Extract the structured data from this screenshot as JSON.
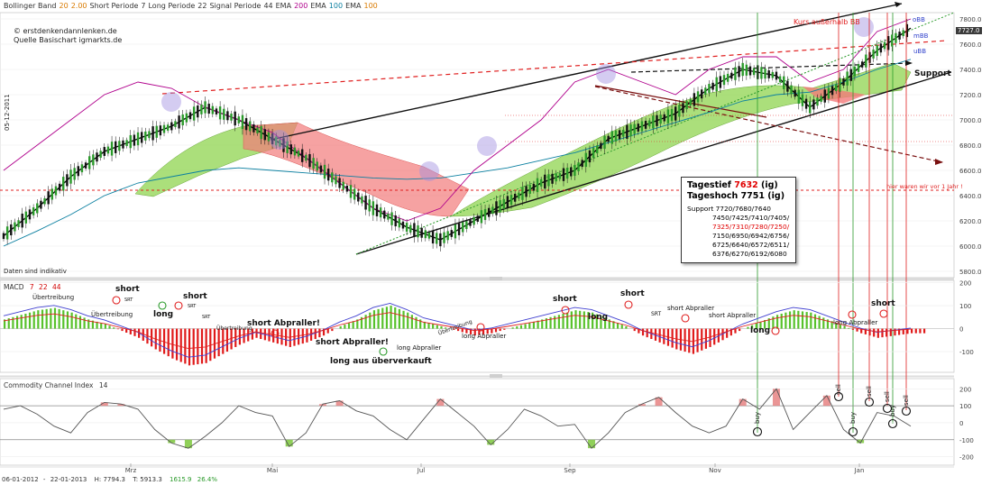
{
  "header": {
    "indicators": [
      {
        "label": "Bollinger Band",
        "color": "#333333"
      },
      {
        "label": "20",
        "color": "#d97a00"
      },
      {
        "label": "2.00",
        "color": "#d97a00"
      },
      {
        "label": "Short Periode",
        "color": "#333333"
      },
      {
        "label": "7",
        "color": "#333333"
      },
      {
        "label": "Long Periode",
        "color": "#333333"
      },
      {
        "label": "22",
        "color": "#333333"
      },
      {
        "label": "Signal Periode",
        "color": "#333333"
      },
      {
        "label": "44",
        "color": "#333333"
      },
      {
        "label": "EMA",
        "color": "#333333"
      },
      {
        "label": "200",
        "color": "#b0008c"
      },
      {
        "label": "EMA",
        "color": "#333333"
      },
      {
        "label": "100",
        "color": "#0a7fa0"
      },
      {
        "label": "EMA",
        "color": "#333333"
      },
      {
        "label": "100",
        "color": "#d97a00"
      }
    ]
  },
  "copyright": "© erstdenkendannlenken.de",
  "source": "Quelle Basischart igmarkts.de",
  "date_rotated": "05-12-2011",
  "disclaimer": "Daten sind indikativ",
  "annotations": {
    "kurs_bb": "Kurs außerhalb BB",
    "obb": "oBB",
    "mbb": "mBB",
    "ubb": "uBB",
    "support": "Support",
    "hier_waren": "hier waren wir vor 1 Jahr !",
    "last_price": "7727.0"
  },
  "info_box": {
    "tagestief_label": "Tagestief",
    "tagestief_value": "7632",
    "tagestief_suffix": "(ig)",
    "tageshoch": "Tageshoch 7751 (ig)",
    "support_line1": "Support 7720/7680/7640",
    "support_line2": "7450/7425/7410/7405/",
    "support_line3": "7325/7310/7280/7250/",
    "support_line4": "7150/6950/6942/6756/",
    "support_line5": "6725/6640/6572/6511/",
    "support_line6": "6376/6270/6192/6080"
  },
  "macd_panel": {
    "title": "MACD",
    "p1": "7",
    "p2": "22",
    "p3": "44",
    "labels": {
      "uebertreibung1": "Übertreibung",
      "uebertreibung2": "Übertreibung",
      "uebertreibung3": "Übertreibung",
      "uebertreibung4": "Übertreibung",
      "short": "short",
      "long": "long",
      "srt": "SRT",
      "short_abpraller": "short Abpraller!",
      "short_abpraller2": "short Abpraller!",
      "long_aus": "long aus überverkauft",
      "long_abpraller": "long Abpraller",
      "short_abpraller_small": "short Abpraller",
      "long_abpraller_small": "long Abpraller"
    }
  },
  "cci_panel": {
    "title": "Commodity Channel Index",
    "period": "14",
    "buy": "buy",
    "sell": "sell"
  },
  "footer": {
    "range_start": "06-01-2012",
    "range_sep": "-",
    "range_end": "22-01-2013",
    "high": "H: 7794.3",
    "low": "T: 5913.3",
    "change": "1615.9",
    "change_pct": "26.4%"
  },
  "chart_data": [
    {
      "type": "line",
      "panel": "price",
      "title": "",
      "xlabel": "",
      "ylabel": "",
      "x_ticks": [
        "Mrz",
        "Mai",
        "Jul",
        "Sep",
        "Nov",
        "Jan"
      ],
      "y_ticks": [
        5800,
        6000,
        6200,
        6400,
        6600,
        6800,
        7000,
        7200,
        7400,
        7600,
        7800
      ],
      "ylim": [
        5750,
        7850
      ],
      "x_points": [
        0,
        10,
        20,
        30,
        40,
        50,
        60,
        70,
        80,
        90,
        100,
        110,
        120,
        130,
        140,
        150,
        160,
        170,
        180,
        190,
        200,
        210,
        220,
        230,
        240,
        250,
        260,
        270
      ],
      "series": [
        {
          "color": "#000000",
          "values": [
            6080,
            6300,
            6550,
            6750,
            6850,
            6950,
            7100,
            7000,
            6850,
            6700,
            6500,
            6300,
            6150,
            6050,
            6200,
            6350,
            6500,
            6600,
            6850,
            6950,
            7050,
            7250,
            7400,
            7350,
            7100,
            7300,
            7550,
            7727
          ]
        },
        {
          "color": "#0a7fa0",
          "values": [
            6000,
            6120,
            6250,
            6400,
            6500,
            6550,
            6600,
            6620,
            6600,
            6580,
            6560,
            6540,
            6530,
            6540,
            6580,
            6620,
            6680,
            6740,
            6820,
            6900,
            6980,
            7060,
            7150,
            7200,
            7220,
            7300,
            7400,
            7480
          ]
        },
        {
          "color": "#b0008c",
          "values": [
            6600,
            6800,
            7000,
            7200,
            7300,
            7250,
            7100,
            7000,
            6900,
            6700,
            6500,
            6300,
            6200,
            6300,
            6600,
            6800,
            7000,
            7300,
            7400,
            7300,
            7200,
            7400,
            7500,
            7500,
            7300,
            7400,
            7700,
            7800
          ]
        }
      ]
    },
    {
      "type": "bar",
      "panel": "macd",
      "title": "",
      "y_ticks": [
        -100,
        0,
        100,
        200
      ],
      "ylim": [
        -190,
        210
      ],
      "values": [
        40,
        60,
        80,
        90,
        70,
        40,
        20,
        -10,
        -40,
        -90,
        -130,
        -160,
        -150,
        -110,
        -70,
        -40,
        -60,
        -80,
        -60,
        -30,
        10,
        40,
        80,
        100,
        70,
        30,
        10,
        -10,
        -30,
        -20,
        0,
        20,
        40,
        60,
        80,
        70,
        40,
        10,
        -30,
        -60,
        -90,
        -110,
        -80,
        -40,
        0,
        30,
        60,
        80,
        70,
        40,
        10,
        -20,
        -40,
        -30,
        -20
      ]
    },
    {
      "type": "line",
      "panel": "cci",
      "title": "",
      "y_ticks": [
        -200,
        -100,
        0,
        100,
        200
      ],
      "ylim": [
        -250,
        260
      ],
      "values": [
        80,
        100,
        50,
        -20,
        -60,
        60,
        120,
        110,
        80,
        -40,
        -120,
        -150,
        -80,
        0,
        100,
        60,
        40,
        -140,
        -60,
        110,
        130,
        70,
        40,
        -40,
        -100,
        20,
        140,
        60,
        -20,
        -130,
        -40,
        80,
        40,
        -20,
        -10,
        -150,
        -60,
        60,
        110,
        150,
        60,
        -20,
        -60,
        -20,
        140,
        80,
        200,
        -40,
        60,
        160,
        -40,
        -120,
        60,
        40,
        -20
      ]
    }
  ]
}
